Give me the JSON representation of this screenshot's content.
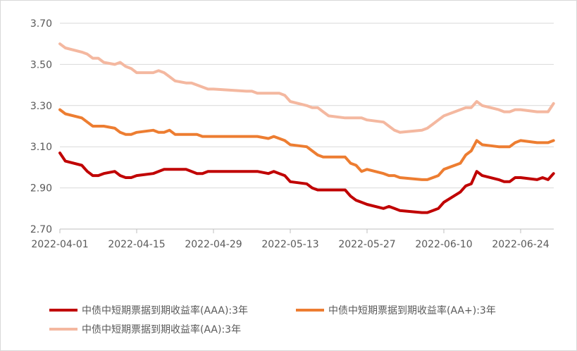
{
  "chart_data": {
    "type": "line",
    "x": [
      "2022-04-01",
      "2022-04-02",
      "2022-04-05",
      "2022-04-06",
      "2022-04-07",
      "2022-04-08",
      "2022-04-09",
      "2022-04-11",
      "2022-04-12",
      "2022-04-13",
      "2022-04-14",
      "2022-04-15",
      "2022-04-18",
      "2022-04-19",
      "2022-04-20",
      "2022-04-21",
      "2022-04-22",
      "2022-04-24",
      "2022-04-25",
      "2022-04-26",
      "2022-04-27",
      "2022-04-28",
      "2022-04-29",
      "2022-05-05",
      "2022-05-06",
      "2022-05-07",
      "2022-05-09",
      "2022-05-10",
      "2022-05-11",
      "2022-05-12",
      "2022-05-13",
      "2022-05-16",
      "2022-05-17",
      "2022-05-18",
      "2022-05-19",
      "2022-05-20",
      "2022-05-23",
      "2022-05-24",
      "2022-05-25",
      "2022-05-26",
      "2022-05-27",
      "2022-05-30",
      "2022-05-31",
      "2022-06-01",
      "2022-06-02",
      "2022-06-06",
      "2022-06-07",
      "2022-06-08",
      "2022-06-09",
      "2022-06-10",
      "2022-06-13",
      "2022-06-14",
      "2022-06-15",
      "2022-06-16",
      "2022-06-17",
      "2022-06-20",
      "2022-06-21",
      "2022-06-22",
      "2022-06-23",
      "2022-06-24",
      "2022-06-27",
      "2022-06-28",
      "2022-06-29",
      "2022-06-30"
    ],
    "x_ticks": [
      "2022-04-01",
      "2022-04-15",
      "2022-04-29",
      "2022-05-13",
      "2022-05-27",
      "2022-06-10",
      "2022-06-24"
    ],
    "ylim": [
      2.7,
      3.7
    ],
    "y_ticks": [
      "2.70",
      "2.90",
      "3.10",
      "3.30",
      "3.50",
      "3.70"
    ],
    "grid": "horizontal",
    "legend_position": "bottom",
    "series": [
      {
        "name": "中债中短期票据到期收益率(AAA):3年",
        "color": "#c00000",
        "values": [
          3.07,
          3.03,
          3.01,
          2.98,
          2.96,
          2.96,
          2.97,
          2.98,
          2.96,
          2.95,
          2.95,
          2.96,
          2.97,
          2.98,
          2.99,
          2.99,
          2.99,
          2.99,
          2.98,
          2.97,
          2.97,
          2.98,
          2.98,
          2.98,
          2.98,
          2.98,
          2.97,
          2.98,
          2.97,
          2.96,
          2.93,
          2.92,
          2.9,
          2.89,
          2.89,
          2.89,
          2.89,
          2.86,
          2.84,
          2.83,
          2.82,
          2.8,
          2.81,
          2.8,
          2.79,
          2.78,
          2.78,
          2.79,
          2.8,
          2.83,
          2.88,
          2.91,
          2.92,
          2.98,
          2.96,
          2.94,
          2.93,
          2.93,
          2.95,
          2.95,
          2.94,
          2.95,
          2.94,
          2.97
        ]
      },
      {
        "name": "中债中短期票据到期收益率(AA+):3年",
        "color": "#ed7d31",
        "values": [
          3.28,
          3.26,
          3.24,
          3.22,
          3.2,
          3.2,
          3.2,
          3.19,
          3.17,
          3.16,
          3.16,
          3.17,
          3.18,
          3.17,
          3.17,
          3.18,
          3.16,
          3.16,
          3.16,
          3.16,
          3.15,
          3.15,
          3.15,
          3.15,
          3.15,
          3.15,
          3.14,
          3.15,
          3.14,
          3.13,
          3.11,
          3.1,
          3.08,
          3.06,
          3.05,
          3.05,
          3.05,
          3.02,
          3.01,
          2.98,
          2.99,
          2.97,
          2.96,
          2.96,
          2.95,
          2.94,
          2.94,
          2.95,
          2.96,
          2.99,
          3.02,
          3.06,
          3.08,
          3.13,
          3.11,
          3.1,
          3.1,
          3.1,
          3.12,
          3.13,
          3.12,
          3.12,
          3.12,
          3.13
        ]
      },
      {
        "name": "中债中短期票据到期收益率(AA):3年",
        "color": "#f4b8a0",
        "values": [
          3.6,
          3.58,
          3.56,
          3.55,
          3.53,
          3.53,
          3.51,
          3.5,
          3.51,
          3.49,
          3.48,
          3.46,
          3.46,
          3.47,
          3.46,
          3.44,
          3.42,
          3.41,
          3.41,
          3.4,
          3.39,
          3.38,
          3.38,
          3.37,
          3.37,
          3.36,
          3.36,
          3.36,
          3.36,
          3.35,
          3.32,
          3.3,
          3.29,
          3.29,
          3.27,
          3.25,
          3.24,
          3.24,
          3.24,
          3.24,
          3.23,
          3.22,
          3.2,
          3.18,
          3.17,
          3.18,
          3.19,
          3.21,
          3.23,
          3.25,
          3.28,
          3.29,
          3.29,
          3.32,
          3.3,
          3.28,
          3.27,
          3.27,
          3.28,
          3.28,
          3.27,
          3.27,
          3.27,
          3.31
        ]
      }
    ]
  }
}
